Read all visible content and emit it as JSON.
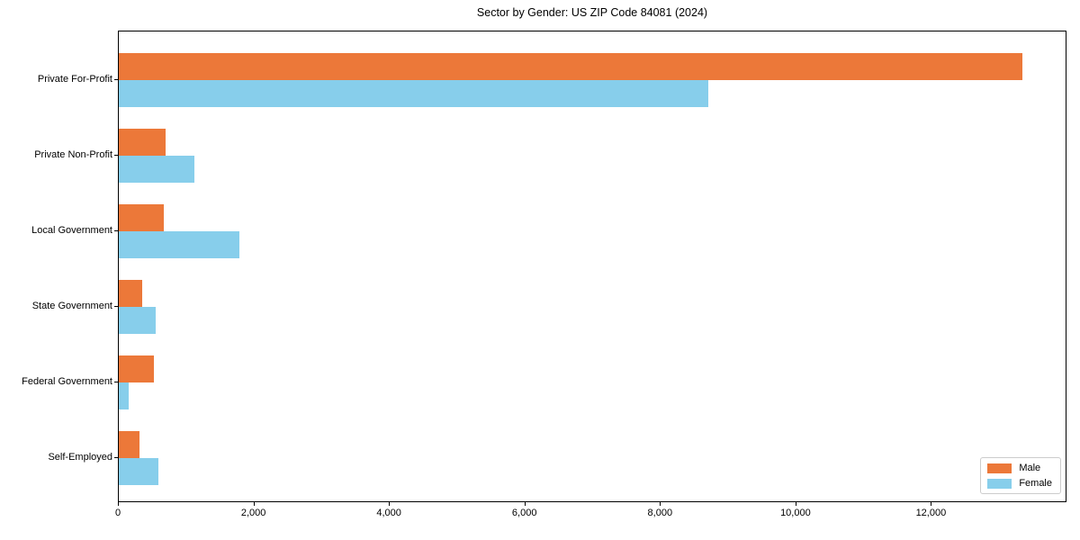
{
  "chart_data": {
    "type": "bar",
    "orientation": "horizontal",
    "title": "Sector by Gender: US ZIP Code 84081 (2024)",
    "categories": [
      "Private For-Profit",
      "Private Non-Profit",
      "Local Government",
      "State Government",
      "Federal Government",
      "Self-Employed"
    ],
    "series": [
      {
        "name": "Male",
        "color": "#EC7839",
        "values": [
          13340,
          690,
          670,
          350,
          520,
          300
        ]
      },
      {
        "name": "Female",
        "color": "#87CEEB",
        "values": [
          8700,
          1110,
          1780,
          540,
          140,
          580
        ]
      }
    ],
    "xlabel": "",
    "ylabel": "",
    "xlim": [
      0,
      14000
    ],
    "xticks": [
      0,
      2000,
      4000,
      6000,
      8000,
      10000,
      12000
    ],
    "xtick_labels": [
      "0",
      "2,000",
      "4,000",
      "6,000",
      "8,000",
      "10,000",
      "12,000"
    ],
    "grid": false,
    "legend": {
      "position": "lower right",
      "entries": [
        "Male",
        "Female"
      ]
    }
  },
  "colors": {
    "male": "#EC7839",
    "female": "#87CEEB",
    "axis": "#000000",
    "legend_border": "#cccccc",
    "background": "#ffffff"
  }
}
